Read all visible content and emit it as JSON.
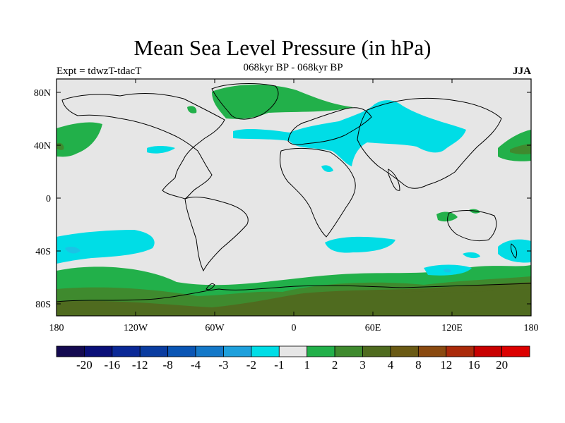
{
  "title": "Mean Sea Level Pressure (in hPa)",
  "subtitle_left": "Expt = tdwzT-tdacT",
  "subtitle_center": "068kyr BP - 068kyr BP",
  "subtitle_right": "JJA",
  "colors": {
    "background": "#e6e6e6",
    "coastline": "#000000",
    "green_light": "#22b04a",
    "green_mid": "#3f8a2e",
    "green_dark": "#4f6b1f",
    "cyan": "#00dde6",
    "cyan_dark": "#1ac4e6"
  },
  "axes": {
    "lat_labels": [
      "80N",
      "40N",
      "0",
      "40S",
      "80S"
    ],
    "lon_labels": [
      "180",
      "120W",
      "60W",
      "0",
      "60E",
      "120E",
      "180"
    ]
  },
  "colorbar": {
    "labels": [
      "-20",
      "-16",
      "-12",
      "-8",
      "-4",
      "-3",
      "-2",
      "-1",
      "1",
      "2",
      "3",
      "4",
      "8",
      "12",
      "16",
      "20"
    ],
    "colors": [
      "#140a50",
      "#0a0f78",
      "#0a2896",
      "#0a3ca0",
      "#0a55b4",
      "#1478c8",
      "#1ea0dc",
      "#00dde6",
      "#e6e6e6",
      "#22b04a",
      "#3f8a2e",
      "#4f6b1f",
      "#6a5a14",
      "#8a4a10",
      "#aa2a0a",
      "#c80000",
      "#dc0000"
    ]
  }
}
